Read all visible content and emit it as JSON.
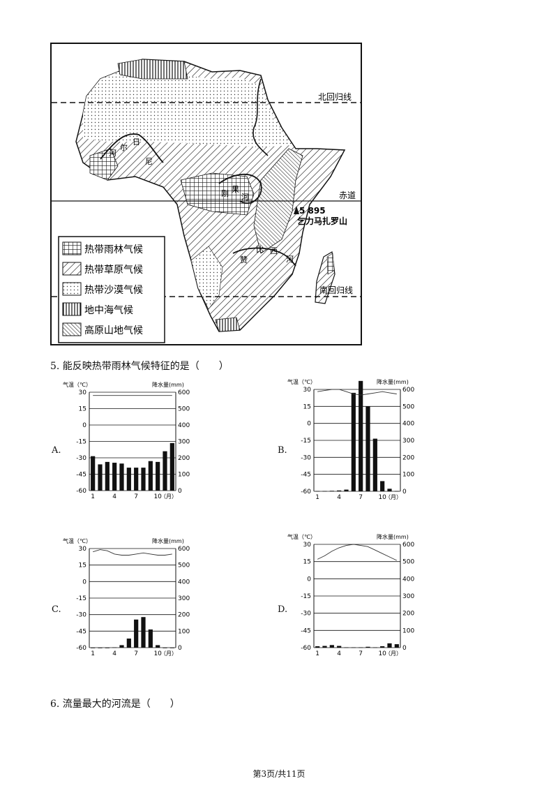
{
  "map": {
    "labels": {
      "tropic_cancer": "北回归线",
      "equator": "赤道",
      "tropic_capricorn": "南回归线",
      "peak_height": "5 895",
      "peak_name": "乞力马扎罗山",
      "river_niger_1": "河",
      "river_niger_2": "尔",
      "river_niger_3": "日",
      "river_niger_4": "尼",
      "river_congo_1": "刚",
      "river_congo_2": "果",
      "river_congo_3": "河",
      "river_zambezi_1": "赞",
      "river_zambezi_2": "比",
      "river_zambezi_3": "西",
      "river_zambezi_4": "河"
    },
    "legend": [
      {
        "label": "热带雨林气候",
        "pattern": "grid"
      },
      {
        "label": "热带草原气候",
        "pattern": "diag"
      },
      {
        "label": "热带沙漠气候",
        "pattern": "dots"
      },
      {
        "label": "地中海气候",
        "pattern": "vert"
      },
      {
        "label": "高原山地气候",
        "pattern": "diag-fine"
      }
    ]
  },
  "question5": "5. 能反映热带雨林气候特征的是（　　）",
  "question6": "6. 流量最大的河流是（　　）",
  "footer": "第3页/共11页",
  "charts": {
    "temp_title": "气温（℃）",
    "precip_title": "降水量(mm)",
    "month_unit": "（月）",
    "temp_ticks": [
      "30",
      "15",
      "0",
      "-15",
      "-30",
      "-45",
      "-60"
    ],
    "precip_ticks": [
      "600",
      "500",
      "400",
      "300",
      "200",
      "100",
      "0"
    ],
    "month_ticks": [
      "1",
      "4",
      "7",
      "10"
    ]
  },
  "chart_data": [
    {
      "option": "A.",
      "type": "bar+line",
      "ylim_temp": [
        -60,
        30
      ],
      "ylim_precip": [
        0,
        600
      ],
      "temperature": [
        27,
        27,
        27,
        27,
        27,
        27,
        27,
        27,
        27,
        27,
        27,
        27
      ],
      "precipitation": [
        210,
        160,
        175,
        170,
        165,
        140,
        140,
        140,
        180,
        175,
        240,
        290
      ]
    },
    {
      "option": "B.",
      "type": "bar+line",
      "ylim_temp": [
        -60,
        30
      ],
      "ylim_precip": [
        0,
        600
      ],
      "temperature": [
        28,
        29,
        30,
        30,
        28,
        26,
        25,
        26,
        27,
        28,
        27,
        26
      ],
      "precipitation": [
        2,
        2,
        3,
        5,
        10,
        580,
        650,
        500,
        310,
        60,
        15,
        2
      ]
    },
    {
      "option": "C.",
      "type": "bar+line",
      "ylim_temp": [
        -60,
        30
      ],
      "ylim_precip": [
        0,
        600
      ],
      "temperature": [
        27,
        29,
        28,
        25,
        24,
        24,
        25,
        26,
        25,
        24,
        24,
        25
      ],
      "precipitation": [
        0,
        0,
        0,
        2,
        15,
        55,
        170,
        185,
        110,
        15,
        0,
        0
      ]
    },
    {
      "option": "D.",
      "type": "bar+line",
      "ylim_temp": [
        -60,
        30
      ],
      "ylim_precip": [
        0,
        600
      ],
      "temperature": [
        17,
        20,
        24,
        27,
        29,
        30,
        29,
        28,
        25,
        22,
        19,
        16
      ],
      "precipitation": [
        8,
        10,
        15,
        10,
        2,
        2,
        2,
        5,
        2,
        8,
        25,
        20
      ]
    }
  ]
}
